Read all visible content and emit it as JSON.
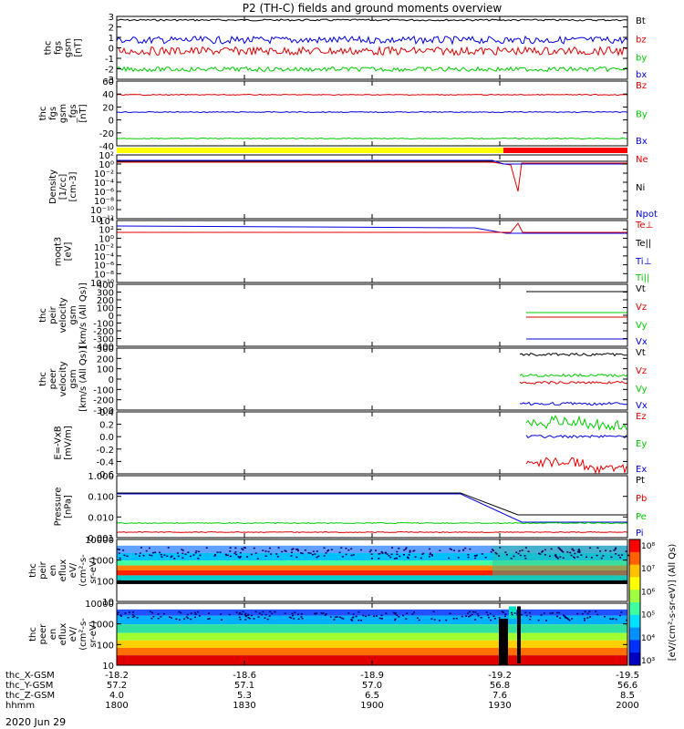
{
  "title": "P2 (TH-C) fields and ground moments overview",
  "date_label": "2020 Jun 29",
  "colors": {
    "black": "#000000",
    "red": "#e00000",
    "green": "#00cc00",
    "blue": "#0000e0",
    "yellow": "#ffff00",
    "bar_red": "#ff0000"
  },
  "chart_data": {
    "type": "line",
    "x_axis_rows": [
      {
        "label": "thc_X-GSM",
        "ticks": [
          "-18.2",
          "-18.6",
          "-18.9",
          "-19.2",
          "-19.5"
        ]
      },
      {
        "label": "thc_Y-GSM",
        "ticks": [
          "57.2",
          "57.1",
          "57.0",
          "56.8",
          "56.6"
        ]
      },
      {
        "label": "thc_Z-GSM",
        "ticks": [
          "4.0",
          "5.3",
          "6.5",
          "7.6",
          "8.5"
        ]
      },
      {
        "label": "hhmm",
        "ticks": [
          "1800",
          "1830",
          "1900",
          "1930",
          "2000"
        ]
      }
    ],
    "panels": [
      {
        "id": "fgs",
        "ylabel": [
          "thc",
          "fgs",
          "gsm",
          "[nT]"
        ],
        "ytick_labels": [
          "3",
          "2",
          "1",
          "0",
          "-1",
          "-2",
          "-3"
        ],
        "legend": [
          "Bt",
          "bz",
          "by",
          "bx"
        ],
        "legend_colors": [
          "black",
          "red",
          "green",
          "blue"
        ]
      },
      {
        "id": "fgs2",
        "ylabel": [
          "thc",
          "fgs",
          "gsm",
          "_fgs",
          "[nT]"
        ],
        "ytick_labels": [
          "60",
          "40",
          "20",
          "0",
          "-20",
          "-40"
        ],
        "legend": [
          "Bz",
          "By",
          "Bx"
        ],
        "legend_colors": [
          "red",
          "green",
          "blue"
        ]
      },
      {
        "id": "density",
        "ylabel": [
          "Density",
          "[1/cc]",
          "[cm-3]"
        ],
        "ytick_labels": [
          "10²",
          "10⁰",
          "10⁻²",
          "10⁻⁴",
          "10⁻⁶",
          "10⁻⁸",
          "10⁻¹⁰",
          "10⁻¹²"
        ],
        "legend": [
          "Ne",
          "Ni",
          "Npot"
        ],
        "legend_colors": [
          "red",
          "black",
          "blue"
        ]
      },
      {
        "id": "temp",
        "ylabel": [
          "moqt3",
          "[eV]"
        ],
        "ytick_labels": [
          "10⁴",
          "10²",
          "10⁰",
          "10⁻²",
          "10⁻⁴",
          "10⁻⁶",
          "10⁻⁸",
          "10⁻¹⁰"
        ],
        "legend": [
          "Te⊥",
          "Te||",
          "Ti⊥",
          "Ti||"
        ],
        "legend_colors": [
          "red",
          "black",
          "blue",
          "green"
        ]
      },
      {
        "id": "vi",
        "ylabel": [
          "thc",
          "peir",
          "velocity",
          "gsm",
          "[km/s (All Qs)]"
        ],
        "ytick_labels": [
          "400",
          "300",
          "200",
          "100",
          "0",
          "-100",
          "-200",
          "-300",
          "-400"
        ],
        "legend": [
          "Vt",
          "Vz",
          "Vy",
          "Vx"
        ],
        "legend_colors": [
          "black",
          "red",
          "green",
          "blue"
        ]
      },
      {
        "id": "ve",
        "ylabel": [
          "thc",
          "peer",
          "velocity",
          "gsm",
          "[km/s (All Qs)]"
        ],
        "ytick_labels": [
          "300",
          "200",
          "100",
          "0",
          "-100",
          "-200",
          "-300"
        ],
        "legend": [
          "Vt",
          "Vz",
          "Vy",
          "Vx"
        ],
        "legend_colors": [
          "black",
          "red",
          "green",
          "blue"
        ]
      },
      {
        "id": "efield",
        "ylabel": [
          "E=-VxB",
          "[mV/m]"
        ],
        "ytick_labels": [
          "0.4",
          "0.2",
          "0.0",
          "-0.2",
          "-0.4",
          "-0.6"
        ],
        "legend": [
          "Ez",
          "Ey",
          "Ex"
        ],
        "legend_colors": [
          "red",
          "green",
          "blue"
        ]
      },
      {
        "id": "pressure",
        "ylabel": [
          "Pressure",
          "[nPa]"
        ],
        "ytick_labels": [
          "1.000",
          "0.100",
          "0.010",
          "0.001"
        ],
        "legend": [
          "Pt",
          "Pb",
          "Pe",
          "Pi"
        ],
        "legend_colors": [
          "black",
          "red",
          "green",
          "blue"
        ]
      },
      {
        "id": "ion_spec",
        "ylabel": [
          "thc",
          "peir",
          "en",
          "eflux",
          "eV/",
          "(cm²-s-",
          "sr-eV)"
        ],
        "ytick_labels": [
          "10000",
          "1000",
          "100",
          "10"
        ]
      },
      {
        "id": "elec_spec",
        "ylabel": [
          "thc",
          "peer",
          "en",
          "eflux",
          "eV/",
          "(cm²-s-",
          "sr-eV)"
        ],
        "ytick_labels": [
          "10000",
          "1000",
          "100",
          "10"
        ]
      }
    ],
    "colorbar": {
      "label": "[eV/(cm²-s-sr-eV)] (All Qs)",
      "ticks": [
        "10⁸",
        "10⁷",
        "10⁶",
        "10⁵",
        "10⁴",
        "10³"
      ]
    }
  }
}
